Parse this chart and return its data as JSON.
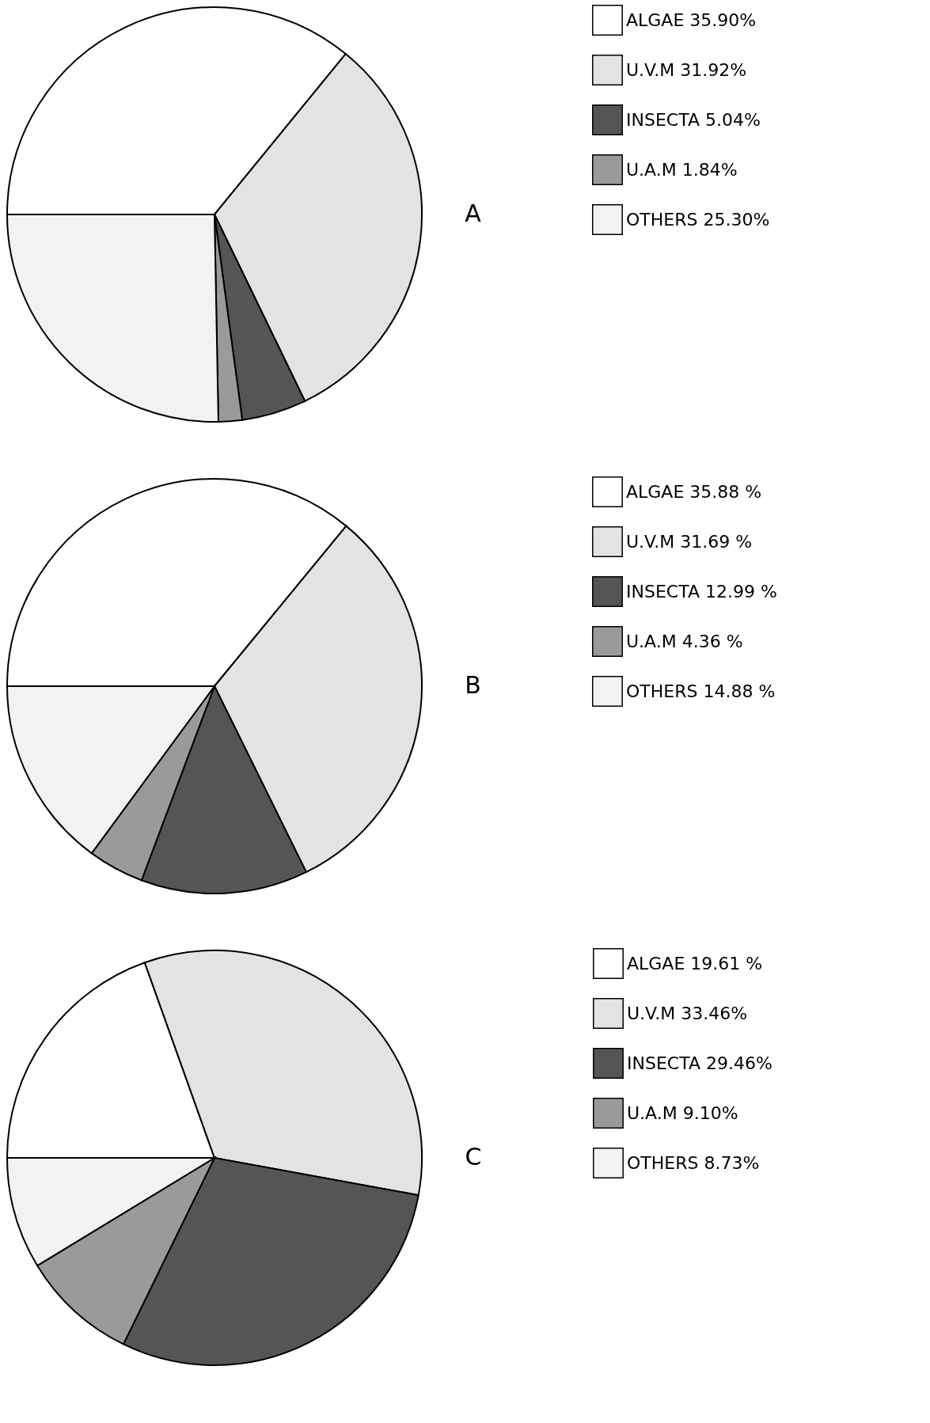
{
  "chart_data": [
    {
      "type": "pie",
      "title": "A",
      "categories": [
        "ALGAE",
        "U.V.M",
        "INSECTA",
        "U.A.M",
        "OTHERS"
      ],
      "values": [
        35.9,
        31.92,
        5.04,
        1.84,
        25.3
      ],
      "value_labels": [
        "35.90%",
        "31.92%",
        "5.04%",
        "1.84%",
        "25.30%"
      ],
      "colors": [
        "#ffffff",
        "#e3e3e3",
        "#555555",
        "#9a9a9a",
        "#f2f2f2"
      ],
      "legend": "right"
    },
    {
      "type": "pie",
      "title": "B",
      "categories": [
        "ALGAE",
        "U.V.M",
        "INSECTA",
        "U.A.M",
        "OTHERS"
      ],
      "values": [
        35.88,
        31.69,
        12.99,
        4.36,
        14.88
      ],
      "value_labels": [
        "35.88 %",
        "31.69 %",
        "12.99 %",
        "4.36 %",
        "14.88 %"
      ],
      "colors": [
        "#ffffff",
        "#e3e3e3",
        "#555555",
        "#9a9a9a",
        "#f2f2f2"
      ],
      "legend": "right"
    },
    {
      "type": "pie",
      "title": "C",
      "categories": [
        "ALGAE",
        "U.V.M",
        "INSECTA",
        "U.A.M",
        "OTHERS"
      ],
      "values": [
        19.61,
        33.46,
        29.46,
        9.1,
        8.73
      ],
      "value_labels": [
        "19.61 %",
        "33.46%",
        "29.46%",
        "9.10%",
        "8.73%"
      ],
      "colors": [
        "#ffffff",
        "#e3e3e3",
        "#555555",
        "#9a9a9a",
        "#f2f2f2"
      ],
      "legend": "right"
    }
  ]
}
